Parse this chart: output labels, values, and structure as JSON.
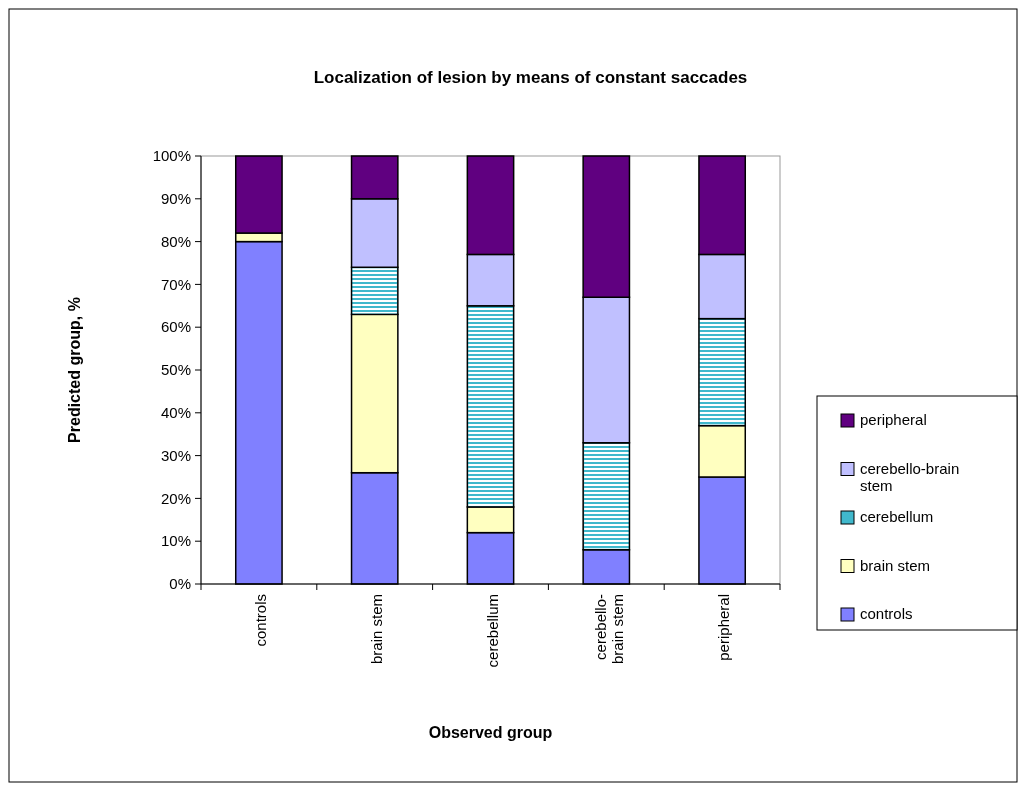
{
  "chart_data": {
    "type": "bar",
    "title": "Localization of lesion by means of constant saccades",
    "xlabel": "Observed group",
    "ylabel": "Predicted group, %",
    "categories": [
      "controls",
      "brain stem",
      "cerebellum",
      "cerebello-brain stem",
      "peripheral"
    ],
    "stacked": true,
    "ylim": [
      0,
      100
    ],
    "yticks": [
      {
        "value": 0,
        "label": "0%"
      },
      {
        "value": 10,
        "label": "10%"
      },
      {
        "value": 20,
        "label": "20%"
      },
      {
        "value": 30,
        "label": "30%"
      },
      {
        "value": 40,
        "label": "40%"
      },
      {
        "value": 50,
        "label": "50%"
      },
      {
        "value": 60,
        "label": "60%"
      },
      {
        "value": 70,
        "label": "70%"
      },
      {
        "value": 80,
        "label": "80%"
      },
      {
        "value": 90,
        "label": "90%"
      },
      {
        "value": 100,
        "label": "100%"
      }
    ],
    "legend": "right",
    "grid": false,
    "series": [
      {
        "name": "controls",
        "color": "#8080ff",
        "values": [
          80,
          26,
          12,
          8,
          25
        ]
      },
      {
        "name": "brain stem",
        "color": "#ffffc0",
        "values": [
          2,
          37,
          6,
          0,
          12
        ]
      },
      {
        "name": "cerebellum",
        "color": "#40b8cc",
        "values": [
          0,
          11,
          47,
          25,
          25
        ]
      },
      {
        "name": "cerebello-brain stem",
        "color": "#c0c0ff",
        "values": [
          0,
          16,
          12,
          34,
          15
        ]
      },
      {
        "name": "peripheral",
        "color": "#600080",
        "values": [
          18,
          10,
          23,
          33,
          23
        ]
      }
    ]
  }
}
